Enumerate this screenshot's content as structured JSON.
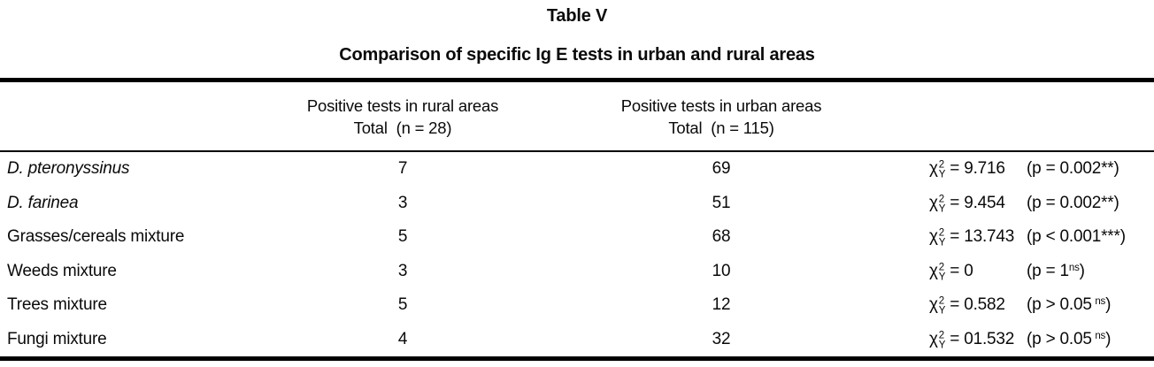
{
  "document": {
    "title": "Table V",
    "subtitle": "Comparison of specific Ig E tests in urban and rural areas"
  },
  "table": {
    "headers": {
      "rural_line1": "Positive tests in rural areas",
      "rural_line2": "Total  (n = 28)",
      "urban_line1": "Positive tests in urban areas",
      "urban_line2": "Total  (n = 115)"
    },
    "chi": {
      "letter": "χ",
      "sup": "2",
      "sub": "Y"
    },
    "rows": [
      {
        "label": "D. pteronyssinus",
        "rural": "7",
        "urban": "69",
        "chi": "= 9.716",
        "p_main": "(p = 0.002**",
        "p_sup": "",
        "p_close": ")"
      },
      {
        "label": "D. farinea",
        "rural": "3",
        "urban": "51",
        "chi": "= 9.454",
        "p_main": "(p = 0.002**",
        "p_sup": "",
        "p_close": ")"
      },
      {
        "label": "Grasses/cereals mixture",
        "rural": "5",
        "urban": "68",
        "chi": "= 13.743",
        "p_main": "(p < 0.001***",
        "p_sup": "",
        "p_close": ")"
      },
      {
        "label": "Weeds mixture",
        "rural": "3",
        "urban": "10",
        "chi": "= 0",
        "p_main": "(p = 1",
        "p_sup": "ns",
        "p_close": ")"
      },
      {
        "label": "Trees mixture",
        "rural": "5",
        "urban": "12",
        "chi": "= 0.582",
        "p_main": "(p > 0.05 ",
        "p_sup": "ns",
        "p_close": ")"
      },
      {
        "label": "Fungi mixture",
        "rural": "4",
        "urban": "32",
        "chi": "= 01.532",
        "p_main": "(p > 0.05 ",
        "p_sup": "ns",
        "p_close": ")"
      }
    ]
  }
}
